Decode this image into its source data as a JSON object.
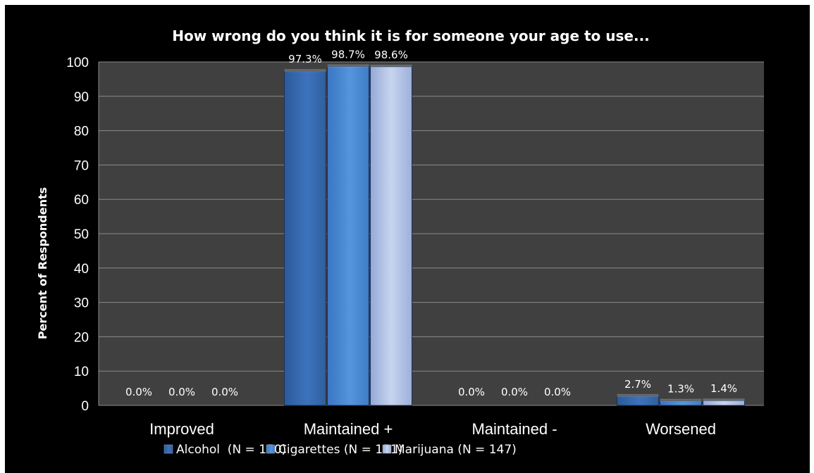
{
  "chart_data": {
    "type": "bar",
    "title": "How wrong do you think it is for someone your age to use...",
    "ylabel": "Percent of Respondents",
    "xlabel": "",
    "ylim": [
      0,
      100
    ],
    "yticks": [
      0,
      10,
      20,
      30,
      40,
      50,
      60,
      70,
      80,
      90,
      100
    ],
    "categories": [
      "Improved",
      "Maintained +",
      "Maintained -",
      "Worsened"
    ],
    "series": [
      {
        "name": "Alcohol  (N = 150)",
        "values": [
          0.0,
          97.3,
          0.0,
          2.7
        ],
        "labels": [
          "0.0%",
          "97.3%",
          "0.0%",
          "2.7%"
        ],
        "color": "#3a6eb5"
      },
      {
        "name": "Cigarettes (N = 151)",
        "values": [
          0.0,
          98.7,
          0.0,
          1.3
        ],
        "labels": [
          "0.0%",
          "98.7%",
          "0.0%",
          "1.3%"
        ],
        "color": "#4a86d0"
      },
      {
        "name": "Marijuana (N = 147)",
        "values": [
          0.0,
          98.6,
          0.0,
          1.4
        ],
        "labels": [
          "0.0%",
          "98.6%",
          "0.0%",
          "1.4%"
        ],
        "color": "#a9bde6"
      }
    ],
    "grid": true,
    "legend": "bottom",
    "plot_background": "#404040"
  }
}
